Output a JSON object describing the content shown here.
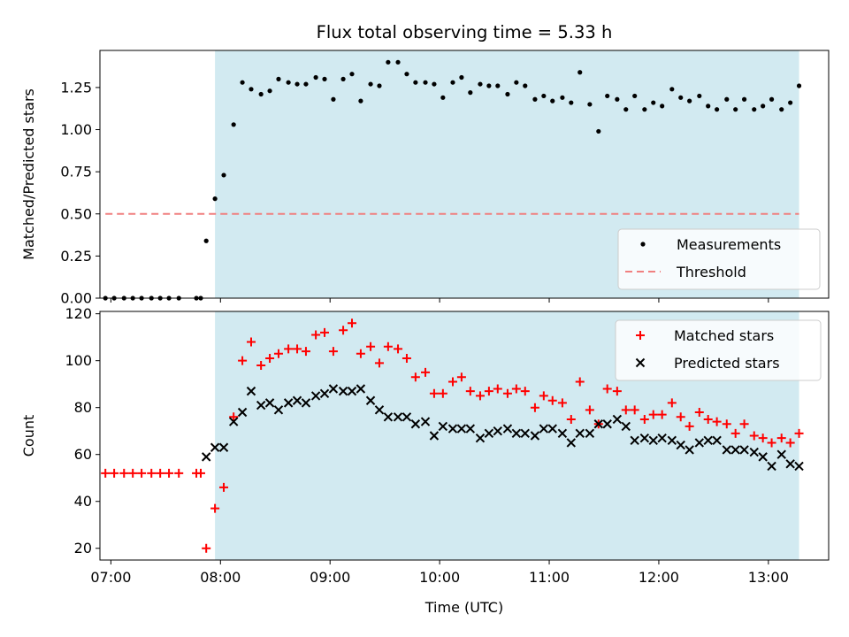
{
  "chart_data": {
    "title": "Flux total observing time = 5.33 h",
    "xlabel": "Time (UTC)",
    "xlim": [
      6.9,
      13.55
    ],
    "x_ticks": [
      {
        "value": 7,
        "label": "07:00"
      },
      {
        "value": 8,
        "label": "08:00"
      },
      {
        "value": 9,
        "label": "09:00"
      },
      {
        "value": 10,
        "label": "10:00"
      },
      {
        "value": 11,
        "label": "11:00"
      },
      {
        "value": 12,
        "label": "12:00"
      },
      {
        "value": 13,
        "label": "13:00"
      }
    ],
    "highlight_span": {
      "from": 7.95,
      "to": 13.28,
      "color": "#add8e6"
    },
    "panels": [
      {
        "type": "scatter",
        "ylabel": "Matched/Predicted stars",
        "ylim": [
          0,
          1.47
        ],
        "y_ticks": [
          {
            "value": 0,
            "label": "0.00"
          },
          {
            "value": 0.25,
            "label": "0.25"
          },
          {
            "value": 0.5,
            "label": "0.50"
          },
          {
            "value": 0.75,
            "label": "0.75"
          },
          {
            "value": 1.0,
            "label": "1.00"
          },
          {
            "value": 1.25,
            "label": "1.25"
          }
        ],
        "legend": {
          "position": "lower-right",
          "entries": [
            "Measurements",
            "Threshold"
          ]
        },
        "series": [
          {
            "name": "Measurements",
            "marker": "dot",
            "color": "#000000",
            "points": [
              [
                6.95,
                0
              ],
              [
                7.03,
                0
              ],
              [
                7.12,
                0
              ],
              [
                7.2,
                0
              ],
              [
                7.28,
                0
              ],
              [
                7.37,
                0
              ],
              [
                7.45,
                0
              ],
              [
                7.53,
                0
              ],
              [
                7.62,
                0
              ],
              [
                7.78,
                0
              ],
              [
                7.82,
                0
              ],
              [
                7.87,
                0.34
              ],
              [
                7.95,
                0.59
              ],
              [
                8.03,
                0.73
              ],
              [
                8.12,
                1.03
              ],
              [
                8.2,
                1.28
              ],
              [
                8.28,
                1.24
              ],
              [
                8.37,
                1.21
              ],
              [
                8.45,
                1.23
              ],
              [
                8.53,
                1.3
              ],
              [
                8.62,
                1.28
              ],
              [
                8.7,
                1.27
              ],
              [
                8.78,
                1.27
              ],
              [
                8.87,
                1.31
              ],
              [
                8.95,
                1.3
              ],
              [
                9.03,
                1.18
              ],
              [
                9.12,
                1.3
              ],
              [
                9.2,
                1.33
              ],
              [
                9.28,
                1.17
              ],
              [
                9.37,
                1.27
              ],
              [
                9.45,
                1.26
              ],
              [
                9.53,
                1.4
              ],
              [
                9.62,
                1.4
              ],
              [
                9.7,
                1.33
              ],
              [
                9.78,
                1.28
              ],
              [
                9.87,
                1.28
              ],
              [
                9.95,
                1.27
              ],
              [
                10.03,
                1.19
              ],
              [
                10.12,
                1.28
              ],
              [
                10.2,
                1.31
              ],
              [
                10.28,
                1.22
              ],
              [
                10.37,
                1.27
              ],
              [
                10.45,
                1.26
              ],
              [
                10.53,
                1.26
              ],
              [
                10.62,
                1.21
              ],
              [
                10.7,
                1.28
              ],
              [
                10.78,
                1.26
              ],
              [
                10.87,
                1.18
              ],
              [
                10.95,
                1.2
              ],
              [
                11.03,
                1.17
              ],
              [
                11.12,
                1.19
              ],
              [
                11.2,
                1.16
              ],
              [
                11.28,
                1.34
              ],
              [
                11.37,
                1.15
              ],
              [
                11.45,
                0.99
              ],
              [
                11.53,
                1.2
              ],
              [
                11.62,
                1.18
              ],
              [
                11.7,
                1.12
              ],
              [
                11.78,
                1.2
              ],
              [
                11.87,
                1.12
              ],
              [
                11.95,
                1.16
              ],
              [
                12.03,
                1.14
              ],
              [
                12.12,
                1.24
              ],
              [
                12.2,
                1.19
              ],
              [
                12.28,
                1.17
              ],
              [
                12.37,
                1.2
              ],
              [
                12.45,
                1.14
              ],
              [
                12.53,
                1.12
              ],
              [
                12.62,
                1.18
              ],
              [
                12.7,
                1.12
              ],
              [
                12.78,
                1.18
              ],
              [
                12.87,
                1.12
              ],
              [
                12.95,
                1.14
              ],
              [
                13.03,
                1.18
              ],
              [
                13.12,
                1.12
              ],
              [
                13.2,
                1.16
              ],
              [
                13.28,
                1.26
              ]
            ]
          },
          {
            "name": "Threshold",
            "marker": "dashed-line",
            "color": "#f08080",
            "points": [
              [
                6.95,
                0.5
              ],
              [
                13.28,
                0.5
              ]
            ]
          }
        ]
      },
      {
        "type": "scatter",
        "ylabel": "Count",
        "ylim": [
          15,
          121
        ],
        "y_ticks": [
          {
            "value": 20,
            "label": "20"
          },
          {
            "value": 40,
            "label": "40"
          },
          {
            "value": 60,
            "label": "60"
          },
          {
            "value": 80,
            "label": "80"
          },
          {
            "value": 100,
            "label": "100"
          },
          {
            "value": 120,
            "label": "120"
          }
        ],
        "legend": {
          "position": "upper-right",
          "entries": [
            "Matched stars",
            "Predicted stars"
          ]
        },
        "series": [
          {
            "name": "Matched stars",
            "marker": "plus",
            "color": "#ff0000",
            "points": [
              [
                6.95,
                52
              ],
              [
                7.03,
                52
              ],
              [
                7.12,
                52
              ],
              [
                7.2,
                52
              ],
              [
                7.28,
                52
              ],
              [
                7.37,
                52
              ],
              [
                7.45,
                52
              ],
              [
                7.53,
                52
              ],
              [
                7.62,
                52
              ],
              [
                7.78,
                52
              ],
              [
                7.82,
                52
              ],
              [
                7.87,
                20
              ],
              [
                7.95,
                37
              ],
              [
                8.03,
                46
              ],
              [
                8.12,
                76
              ],
              [
                8.2,
                100
              ],
              [
                8.28,
                108
              ],
              [
                8.37,
                98
              ],
              [
                8.45,
                101
              ],
              [
                8.53,
                103
              ],
              [
                8.62,
                105
              ],
              [
                8.7,
                105
              ],
              [
                8.78,
                104
              ],
              [
                8.87,
                111
              ],
              [
                8.95,
                112
              ],
              [
                9.03,
                104
              ],
              [
                9.12,
                113
              ],
              [
                9.2,
                116
              ],
              [
                9.28,
                103
              ],
              [
                9.37,
                106
              ],
              [
                9.45,
                99
              ],
              [
                9.53,
                106
              ],
              [
                9.62,
                105
              ],
              [
                9.7,
                101
              ],
              [
                9.78,
                93
              ],
              [
                9.87,
                95
              ],
              [
                9.95,
                86
              ],
              [
                10.03,
                86
              ],
              [
                10.12,
                91
              ],
              [
                10.2,
                93
              ],
              [
                10.28,
                87
              ],
              [
                10.37,
                85
              ],
              [
                10.45,
                87
              ],
              [
                10.53,
                88
              ],
              [
                10.62,
                86
              ],
              [
                10.7,
                88
              ],
              [
                10.78,
                87
              ],
              [
                10.87,
                80
              ],
              [
                10.95,
                85
              ],
              [
                11.03,
                83
              ],
              [
                11.12,
                82
              ],
              [
                11.2,
                75
              ],
              [
                11.28,
                91
              ],
              [
                11.37,
                79
              ],
              [
                11.45,
                73
              ],
              [
                11.53,
                88
              ],
              [
                11.62,
                87
              ],
              [
                11.7,
                79
              ],
              [
                11.78,
                79
              ],
              [
                11.87,
                75
              ],
              [
                11.95,
                77
              ],
              [
                12.03,
                77
              ],
              [
                12.12,
                82
              ],
              [
                12.2,
                76
              ],
              [
                12.28,
                72
              ],
              [
                12.37,
                78
              ],
              [
                12.45,
                75
              ],
              [
                12.53,
                74
              ],
              [
                12.62,
                73
              ],
              [
                12.7,
                69
              ],
              [
                12.78,
                73
              ],
              [
                12.87,
                68
              ],
              [
                12.95,
                67
              ],
              [
                13.03,
                65
              ],
              [
                13.12,
                67
              ],
              [
                13.2,
                65
              ],
              [
                13.28,
                69
              ]
            ]
          },
          {
            "name": "Predicted stars",
            "marker": "cross",
            "color": "#000000",
            "points": [
              [
                7.87,
                59
              ],
              [
                7.95,
                63
              ],
              [
                8.03,
                63
              ],
              [
                8.12,
                74
              ],
              [
                8.2,
                78
              ],
              [
                8.28,
                87
              ],
              [
                8.37,
                81
              ],
              [
                8.45,
                82
              ],
              [
                8.53,
                79
              ],
              [
                8.62,
                82
              ],
              [
                8.7,
                83
              ],
              [
                8.78,
                82
              ],
              [
                8.87,
                85
              ],
              [
                8.95,
                86
              ],
              [
                9.03,
                88
              ],
              [
                9.12,
                87
              ],
              [
                9.2,
                87
              ],
              [
                9.28,
                88
              ],
              [
                9.37,
                83
              ],
              [
                9.45,
                79
              ],
              [
                9.53,
                76
              ],
              [
                9.62,
                76
              ],
              [
                9.7,
                76
              ],
              [
                9.78,
                73
              ],
              [
                9.87,
                74
              ],
              [
                9.95,
                68
              ],
              [
                10.03,
                72
              ],
              [
                10.12,
                71
              ],
              [
                10.2,
                71
              ],
              [
                10.28,
                71
              ],
              [
                10.37,
                67
              ],
              [
                10.45,
                69
              ],
              [
                10.53,
                70
              ],
              [
                10.62,
                71
              ],
              [
                10.7,
                69
              ],
              [
                10.78,
                69
              ],
              [
                10.87,
                68
              ],
              [
                10.95,
                71
              ],
              [
                11.03,
                71
              ],
              [
                11.12,
                69
              ],
              [
                11.2,
                65
              ],
              [
                11.28,
                69
              ],
              [
                11.37,
                69
              ],
              [
                11.45,
                73
              ],
              [
                11.53,
                73
              ],
              [
                11.62,
                75
              ],
              [
                11.7,
                72
              ],
              [
                11.78,
                66
              ],
              [
                11.87,
                67
              ],
              [
                11.95,
                66
              ],
              [
                12.03,
                67
              ],
              [
                12.12,
                66
              ],
              [
                12.2,
                64
              ],
              [
                12.28,
                62
              ],
              [
                12.37,
                65
              ],
              [
                12.45,
                66
              ],
              [
                12.53,
                66
              ],
              [
                12.62,
                62
              ],
              [
                12.7,
                62
              ],
              [
                12.78,
                62
              ],
              [
                12.87,
                61
              ],
              [
                12.95,
                59
              ],
              [
                13.03,
                55
              ],
              [
                13.12,
                60
              ],
              [
                13.2,
                56
              ],
              [
                13.28,
                55
              ]
            ]
          }
        ]
      }
    ]
  }
}
